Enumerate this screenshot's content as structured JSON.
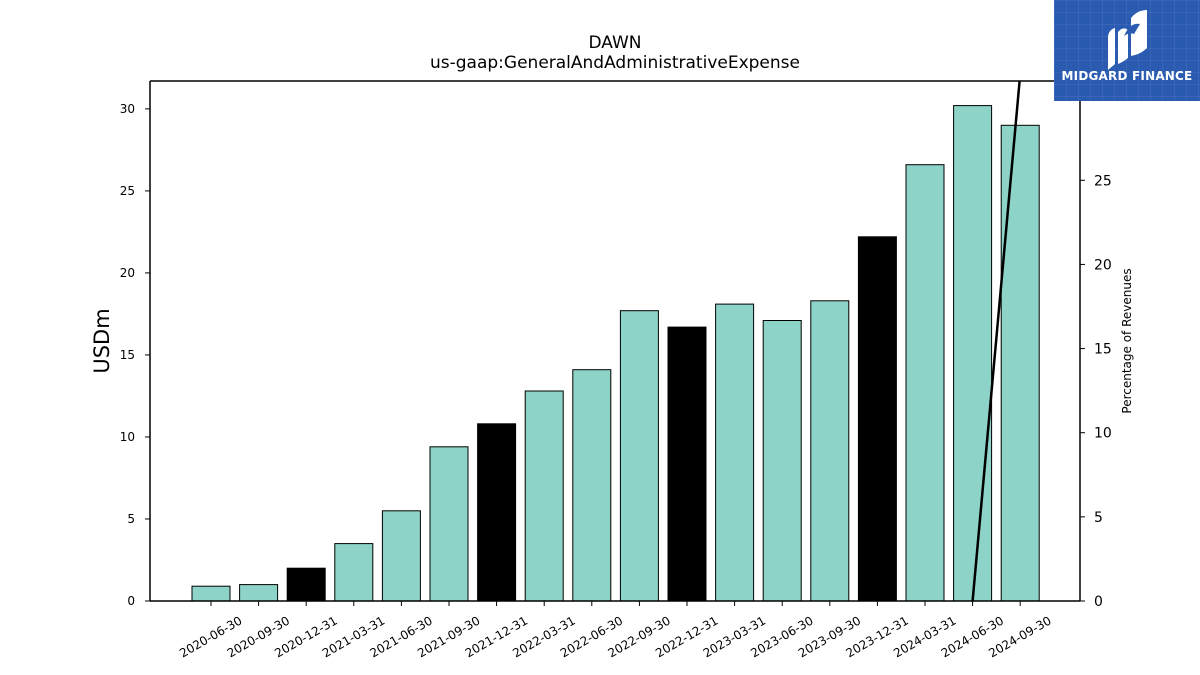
{
  "chart_data": {
    "type": "bar",
    "title": "DAWN",
    "subtitle": "us-gaap:GeneralAndAdministrativeExpense",
    "ylabel": "USDm",
    "ylabel_right": "Percentage of Revenues",
    "ylim": [
      0,
      31.7
    ],
    "ylim_right": [
      0,
      30.9
    ],
    "yticks": [
      0,
      5,
      10,
      15,
      20,
      25,
      30
    ],
    "yticks_right": [
      0,
      5,
      10,
      15,
      20,
      25,
      30
    ],
    "categories": [
      "2020-06-30",
      "2020-09-30",
      "2020-12-31",
      "2021-03-31",
      "2021-06-30",
      "2021-09-30",
      "2021-12-31",
      "2022-03-31",
      "2022-06-30",
      "2022-09-30",
      "2022-12-31",
      "2023-03-31",
      "2023-06-30",
      "2023-09-30",
      "2023-12-31",
      "2024-03-31",
      "2024-06-30",
      "2024-09-30"
    ],
    "values": [
      0.9,
      1.0,
      2.0,
      3.5,
      5.5,
      9.4,
      10.8,
      12.8,
      14.1,
      17.7,
      16.7,
      18.1,
      17.1,
      18.3,
      22.2,
      26.6,
      30.2,
      29.0
    ],
    "highlight": [
      false,
      false,
      true,
      false,
      false,
      false,
      true,
      false,
      false,
      false,
      true,
      false,
      false,
      false,
      true,
      false,
      false,
      false
    ],
    "bar_color": "#8dd3c7",
    "highlight_color": "#000000",
    "line": {
      "name": "Percentage of Revenues",
      "axis": "right",
      "x": [
        "2024-06-30",
        "2024-09-30"
      ],
      "y": [
        0,
        31.3
      ],
      "color": "#000000"
    }
  },
  "logo": {
    "text": "MIDGARD FINANCE"
  }
}
